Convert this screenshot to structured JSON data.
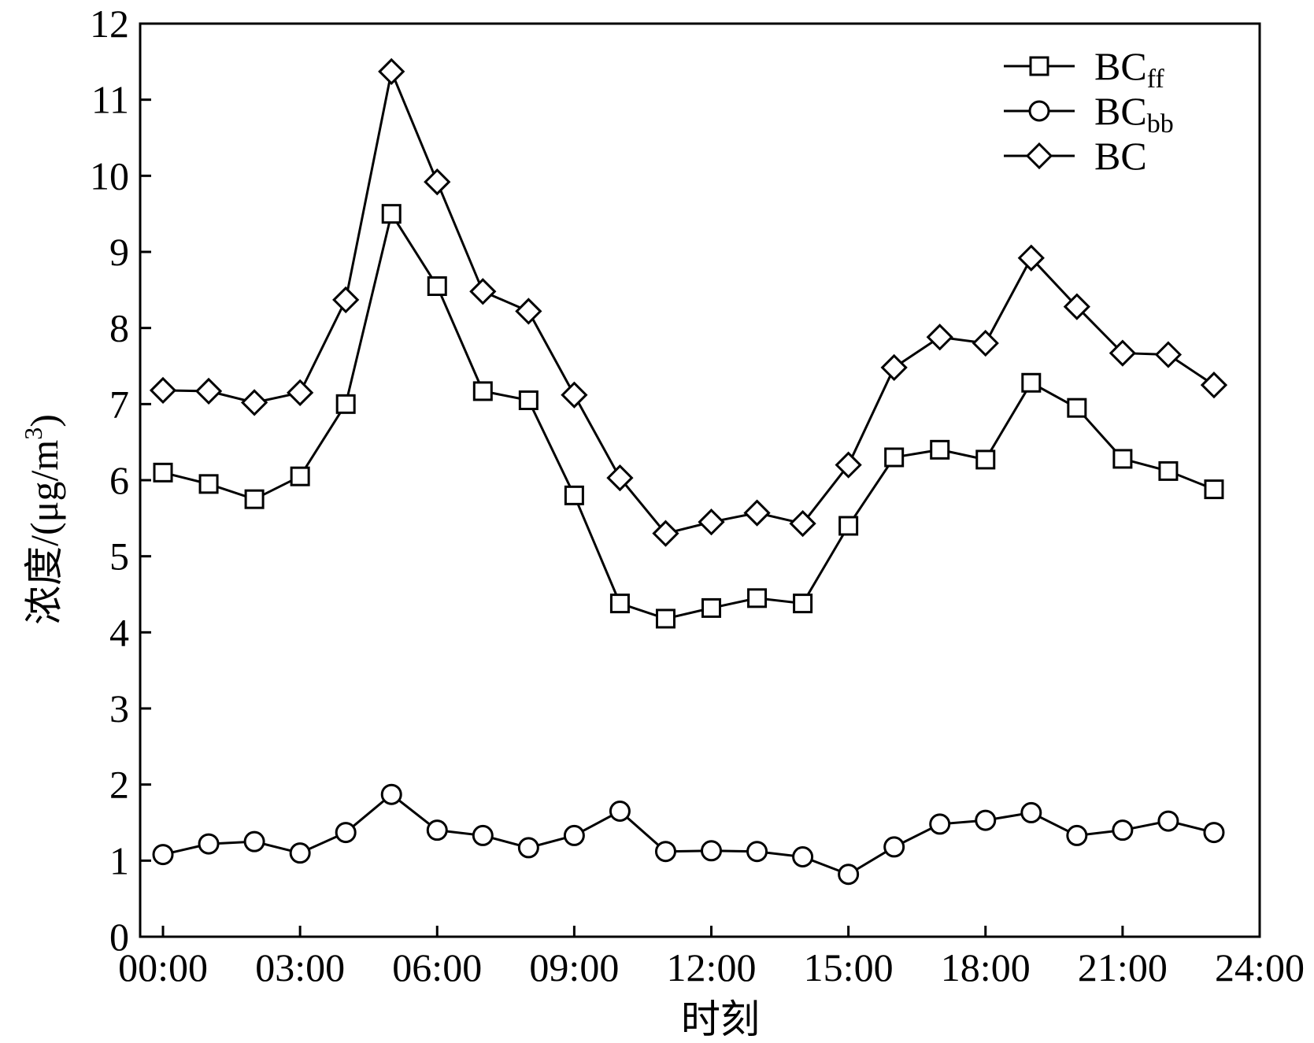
{
  "chart_data": {
    "type": "line",
    "xlabel": "时刻",
    "ylabel": "浓度/(μg/m³)",
    "ylabel_parts": {
      "main": "浓度/(μg/m",
      "sup": "3",
      "close": ")"
    },
    "xlim": [
      -0.5,
      24
    ],
    "ylim": [
      0,
      12
    ],
    "x_ticks": [
      0,
      3,
      6,
      9,
      12,
      15,
      18,
      21,
      24
    ],
    "x_tick_labels": [
      "00:00",
      "03:00",
      "06:00",
      "09:00",
      "12:00",
      "15:00",
      "18:00",
      "21:00",
      "24:00"
    ],
    "y_ticks": [
      0,
      1,
      2,
      3,
      4,
      5,
      6,
      7,
      8,
      9,
      10,
      11,
      12
    ],
    "y_tick_labels": [
      "0",
      "1",
      "2",
      "3",
      "4",
      "5",
      "6",
      "7",
      "8",
      "9",
      "10",
      "11",
      "12"
    ],
    "x": [
      0,
      1,
      2,
      3,
      4,
      5,
      6,
      7,
      8,
      9,
      10,
      11,
      12,
      13,
      14,
      15,
      16,
      17,
      18,
      19,
      20,
      21,
      22,
      23
    ],
    "legend_placement": "top-right",
    "grid": false,
    "series": [
      {
        "name": "BCff",
        "name_main": "BC",
        "name_sub": "ff",
        "marker": "square",
        "values": [
          6.1,
          5.95,
          5.75,
          6.05,
          7.0,
          9.5,
          8.55,
          7.17,
          7.05,
          5.8,
          4.38,
          4.18,
          4.32,
          4.45,
          4.38,
          5.4,
          6.3,
          6.4,
          6.27,
          7.28,
          6.95,
          6.28,
          6.12,
          5.88
        ]
      },
      {
        "name": "BCbb",
        "name_main": "BC",
        "name_sub": "bb",
        "marker": "circle",
        "values": [
          1.08,
          1.22,
          1.25,
          1.1,
          1.37,
          1.87,
          1.4,
          1.33,
          1.17,
          1.33,
          1.65,
          1.12,
          1.13,
          1.12,
          1.05,
          0.82,
          1.18,
          1.48,
          1.53,
          1.63,
          1.33,
          1.4,
          1.52,
          1.37
        ]
      },
      {
        "name": "BC",
        "name_main": "BC",
        "name_sub": "",
        "marker": "diamond",
        "values": [
          7.18,
          7.17,
          7.02,
          7.15,
          8.37,
          11.37,
          9.92,
          8.48,
          8.22,
          7.12,
          6.03,
          5.3,
          5.45,
          5.57,
          5.43,
          6.2,
          7.48,
          7.88,
          7.8,
          8.92,
          8.28,
          7.67,
          7.65,
          7.25
        ]
      }
    ]
  }
}
